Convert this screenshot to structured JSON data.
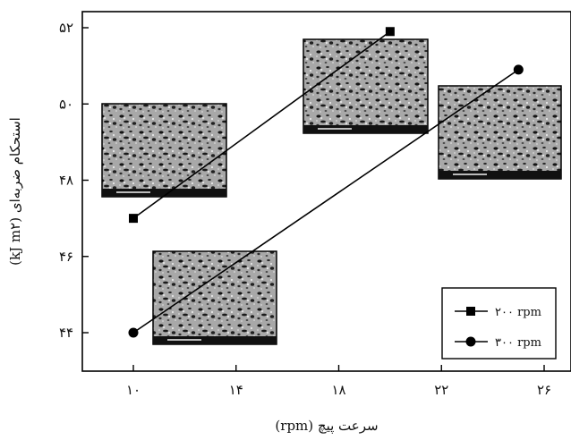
{
  "chart_data": {
    "type": "line",
    "xlabel": "سرعت پیچ (rpm)",
    "ylabel": "استحکام ضربه‌ای (kJ m۲)",
    "xlim": [
      8,
      27
    ],
    "ylim": [
      43,
      52.5
    ],
    "x_ticks": [
      10,
      14,
      18,
      22,
      26
    ],
    "x_tick_labels": [
      "۱۰",
      "۱۴",
      "۱۸",
      "۲۲",
      "۲۶"
    ],
    "y_ticks": [
      44,
      46,
      48,
      50,
      52
    ],
    "y_tick_labels": [
      "۴۴",
      "۴۶",
      "۴۸",
      "۵۰",
      "۵۲"
    ],
    "grid": false,
    "legend_position": "bottom-right",
    "series": [
      {
        "name": "۲۰۰ rpm",
        "marker": "square",
        "color": "#000000",
        "x": [
          10,
          20
        ],
        "y": [
          47,
          51.9
        ]
      },
      {
        "name": "۳۰۰ rpm",
        "marker": "circle",
        "color": "#000000",
        "x": [
          10,
          25
        ],
        "y": [
          44,
          50.9
        ]
      }
    ],
    "annotations": [
      {
        "type": "SEM micrograph inset",
        "series": "۲۰۰ rpm",
        "point": [
          10,
          47
        ]
      },
      {
        "type": "SEM micrograph inset",
        "series": "۲۰۰ rpm",
        "point": [
          20,
          51.9
        ]
      },
      {
        "type": "SEM micrograph inset",
        "series": "۳۰۰ rpm",
        "point": [
          10,
          44
        ]
      },
      {
        "type": "SEM micrograph inset",
        "series": "۳۰۰ rpm",
        "point": [
          25,
          50.9
        ]
      }
    ]
  }
}
